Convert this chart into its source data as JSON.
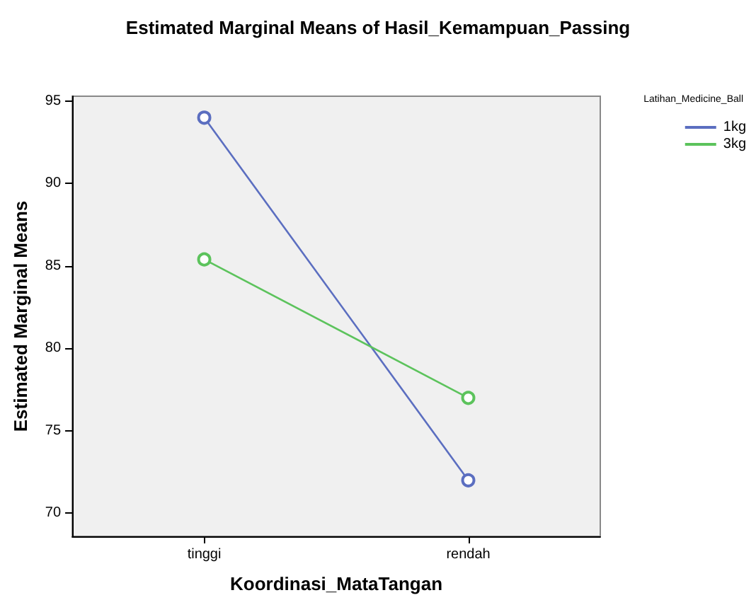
{
  "chart_data": {
    "type": "line",
    "title": "Estimated Marginal Means of Hasil_Kemampuan_Passing",
    "xlabel": "Koordinasi_MataTangan",
    "ylabel": "Estimated Marginal Means",
    "legend_title": "Latihan_Medicine_Ball",
    "categories": [
      "tinggi",
      "rendah"
    ],
    "series": [
      {
        "name": "1kg",
        "color": "#5b6ec0",
        "values": [
          94.0,
          72.0
        ]
      },
      {
        "name": "3kg",
        "color": "#5cc35c",
        "values": [
          85.4,
          77.0
        ]
      }
    ],
    "ylim": [
      68.6,
      95.3
    ],
    "yticks": [
      70,
      75,
      80,
      85,
      90,
      95
    ],
    "grid": false,
    "legend": "top right",
    "marker": "circle",
    "line_style": "solid"
  }
}
